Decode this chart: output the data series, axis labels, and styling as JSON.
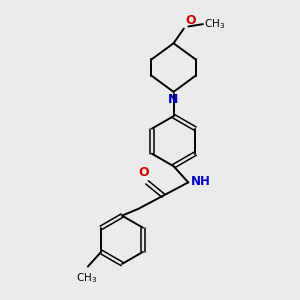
{
  "background_color": "#ebebeb",
  "bond_color": "#000000",
  "N_color": "#0000cc",
  "O_color": "#cc0000",
  "text_color": "#000000",
  "figsize": [
    3.0,
    3.0
  ],
  "dpi": 100,
  "xlim": [
    0,
    10
  ],
  "ylim": [
    0,
    10
  ]
}
